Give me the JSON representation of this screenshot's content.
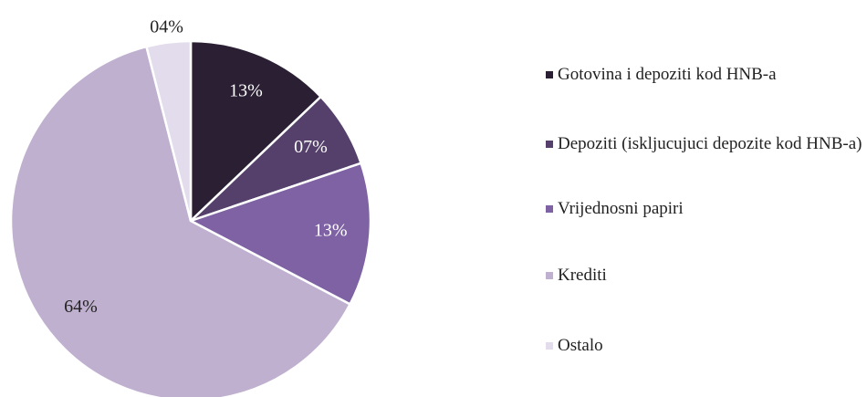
{
  "chart_data": {
    "type": "pie",
    "categories": [
      "Gotovina i depoziti kod HNB-a",
      "Depoziti (iskljucujuci depozite kod HNB-a)",
      "Vrijednosni papiri",
      "Krediti",
      "Ostalo"
    ],
    "values": [
      13,
      7,
      13,
      64,
      4
    ],
    "value_labels": [
      "13%",
      "07%",
      "13%",
      "64%",
      "04%"
    ],
    "colors": [
      "#2a1f33",
      "#54406a",
      "#7e62a3",
      "#bfb0d0",
      "#e3dcec"
    ],
    "legend": "right"
  }
}
